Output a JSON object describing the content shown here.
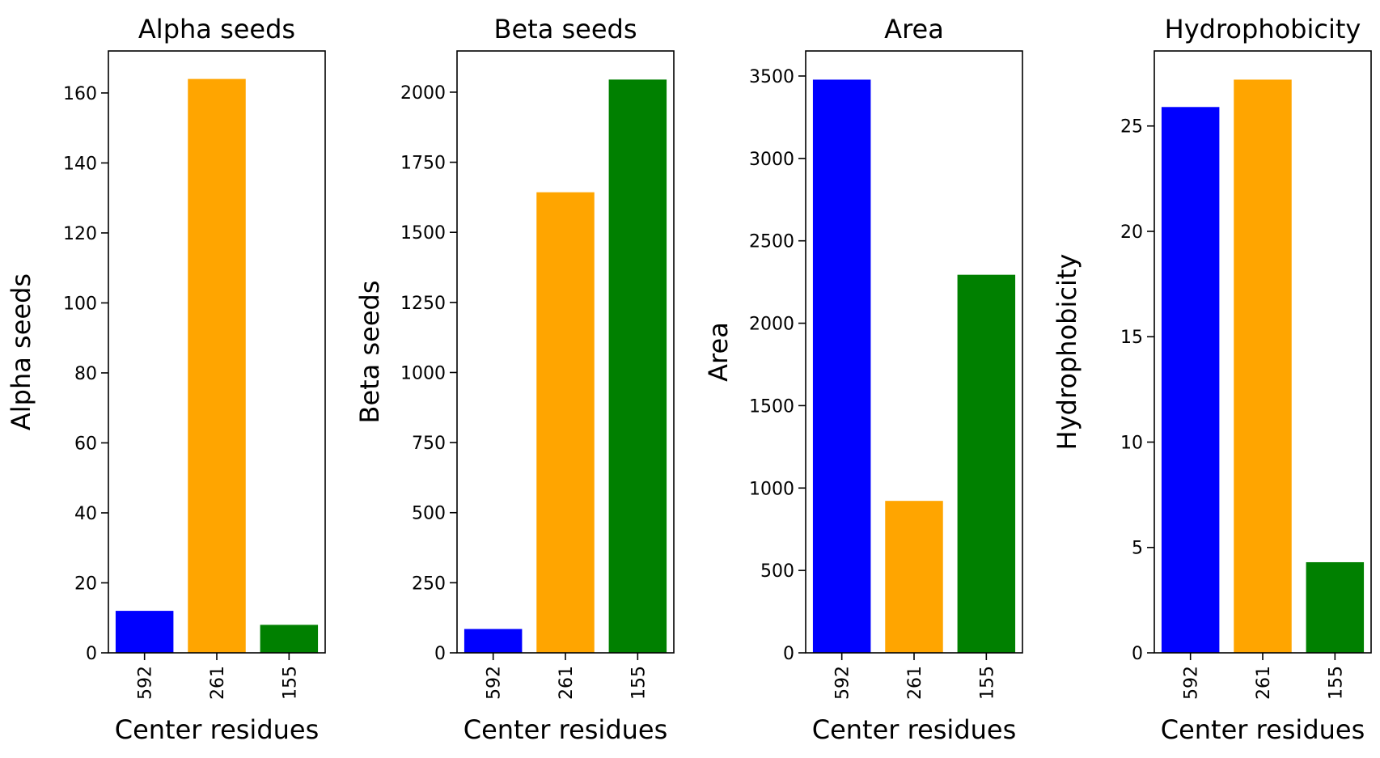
{
  "chart_data": [
    {
      "type": "bar",
      "title": "Alpha seeds",
      "xlabel": "Center residues",
      "ylabel": "Alpha seeds",
      "categories": [
        "592",
        "261",
        "155"
      ],
      "values": [
        12,
        164,
        8
      ],
      "colors": [
        "#0000ff",
        "#ffa500",
        "#008000"
      ],
      "ylim": [
        0,
        172
      ],
      "yticks": [
        0,
        20,
        40,
        60,
        80,
        100,
        120,
        140,
        160
      ],
      "grid": false
    },
    {
      "type": "bar",
      "title": "Beta seeds",
      "xlabel": "Center residues",
      "ylabel": "Beta seeds",
      "categories": [
        "592",
        "261",
        "155"
      ],
      "values": [
        85,
        1643,
        2045
      ],
      "colors": [
        "#0000ff",
        "#ffa500",
        "#008000"
      ],
      "ylim": [
        0,
        2147
      ],
      "yticks": [
        0,
        250,
        500,
        750,
        1000,
        1250,
        1500,
        1750,
        2000
      ],
      "grid": false
    },
    {
      "type": "bar",
      "title": "Area",
      "xlabel": "Center residues",
      "ylabel": "Area",
      "categories": [
        "592",
        "261",
        "155"
      ],
      "values": [
        3478,
        922,
        2294
      ],
      "colors": [
        "#0000ff",
        "#ffa500",
        "#008000"
      ],
      "ylim": [
        0,
        3652
      ],
      "yticks": [
        0,
        500,
        1000,
        1500,
        2000,
        2500,
        3000,
        3500
      ],
      "grid": false
    },
    {
      "type": "bar",
      "title": "Hydrophobicity",
      "xlabel": "Center residues",
      "ylabel": "Hydrophobicity",
      "categories": [
        "592",
        "261",
        "155"
      ],
      "values": [
        25.9,
        27.2,
        4.3
      ],
      "colors": [
        "#0000ff",
        "#ffa500",
        "#008000"
      ],
      "ylim": [
        0,
        28.56
      ],
      "yticks": [
        0,
        5,
        10,
        15,
        20,
        25
      ],
      "grid": false
    }
  ]
}
